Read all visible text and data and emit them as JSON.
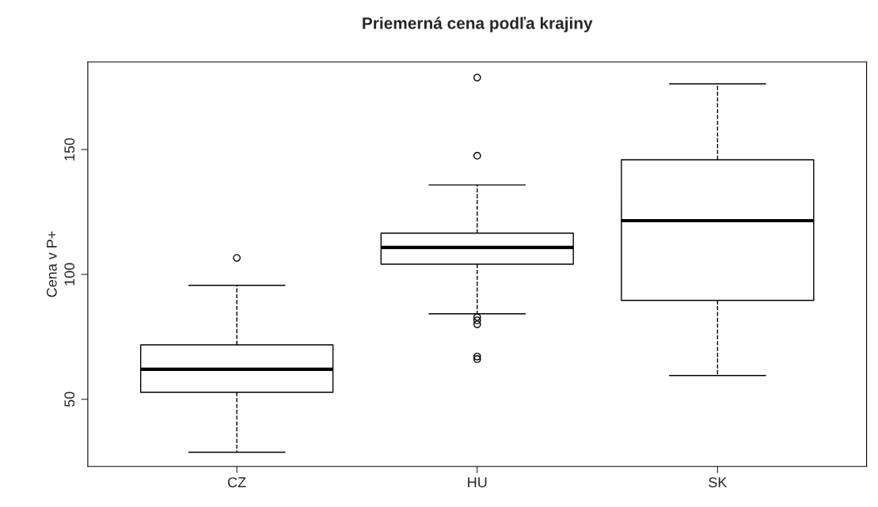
{
  "chart_data": {
    "type": "box",
    "title": "Priemerná cena podľa krajiny",
    "ylabel": "Cena v P+",
    "categories": [
      "CZ",
      "HU",
      "SK"
    ],
    "boxes": [
      {
        "low": 28.8,
        "q1": 52.8,
        "median": 62,
        "q3": 71.8,
        "high": 95.6,
        "outliers": [
          106.6
        ]
      },
      {
        "low": 84.2,
        "q1": 104.1,
        "median": 110.8,
        "q3": 116.5,
        "high": 135.8,
        "outliers": [
          178.8,
          147.5,
          82.9,
          81.6,
          80,
          67.1,
          66.1
        ]
      },
      {
        "low": 59.5,
        "q1": 89.6,
        "median": 121.5,
        "q3": 145.9,
        "high": 176.3
      }
    ],
    "ylim": [
      23.1,
      185.1
    ],
    "yticks": [
      50,
      100,
      150
    ],
    "grid": false
  }
}
